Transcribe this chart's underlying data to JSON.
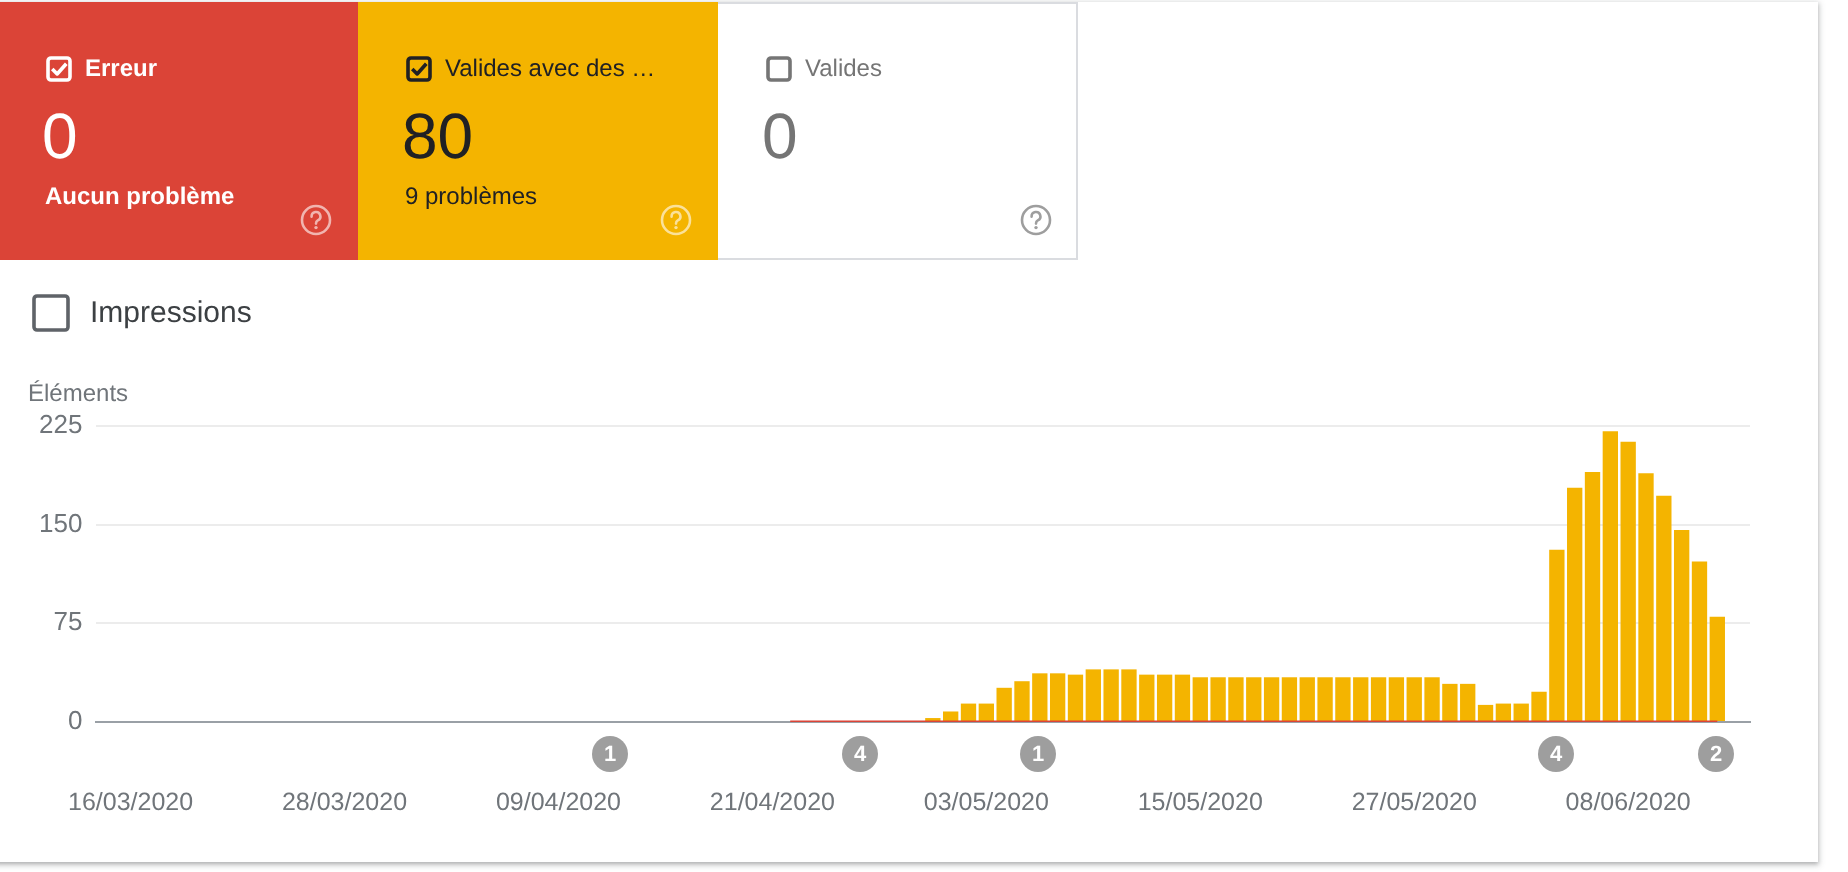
{
  "chart_data": [
    {
      "type": "other",
      "categories": [
        "Erreur",
        "Valides avec des …",
        "Valides"
      ],
      "values": [
        0,
        80,
        0
      ],
      "colors": [
        "#db4437",
        "#f4b400",
        null
      ],
      "data_labels": true,
      "annotations": [
        "Aucun problème",
        "9 problèmes"
      ]
    },
    {
      "type": "bar",
      "ylabel": "Éléments",
      "series": [
        {
          "type": "line",
          "color": "#db4437",
          "x": [
            "2020-04-22",
            "2020-06-13"
          ],
          "values": [
            0,
            0
          ]
        },
        {
          "color": "#f4b400",
          "x": [
            "2020-04-30",
            "2020-05-01",
            "2020-05-02",
            "2020-05-03",
            "2020-05-04",
            "2020-05-05",
            "2020-05-06",
            "2020-05-07",
            "2020-05-08",
            "2020-05-09",
            "2020-05-10",
            "2020-05-11",
            "2020-05-12",
            "2020-05-13",
            "2020-05-14",
            "2020-05-15",
            "2020-05-16",
            "2020-05-17",
            "2020-05-18",
            "2020-05-19",
            "2020-05-20",
            "2020-05-21",
            "2020-05-22",
            "2020-05-23",
            "2020-05-24",
            "2020-05-25",
            "2020-05-26",
            "2020-05-27",
            "2020-05-28",
            "2020-05-29",
            "2020-05-30",
            "2020-05-31",
            "2020-06-01",
            "2020-06-02",
            "2020-06-03",
            "2020-06-04",
            "2020-06-05",
            "2020-06-06",
            "2020-06-07",
            "2020-06-08",
            "2020-06-09",
            "2020-06-10",
            "2020-06-11",
            "2020-06-12",
            "2020-06-13"
          ],
          "values": [
            3,
            8,
            14,
            14,
            26,
            31,
            37,
            37,
            36,
            40,
            40,
            40,
            36,
            36,
            36,
            34,
            34,
            34,
            34,
            34,
            34,
            34,
            34,
            34,
            34,
            34,
            34,
            34,
            34,
            29,
            29,
            13,
            14,
            14,
            23,
            131,
            178,
            190,
            221,
            213,
            189,
            172,
            146,
            122,
            80
          ]
        }
      ],
      "xlim": [
        "2020-03-14T02:00",
        "2020-06-14T20:00"
      ],
      "xticks": [
        {
          "value": "2020-03-16",
          "label": "16/03/2020"
        },
        {
          "value": "2020-03-28",
          "label": "28/03/2020"
        },
        {
          "value": "2020-04-09",
          "label": "09/04/2020"
        },
        {
          "value": "2020-04-21",
          "label": "21/04/2020"
        },
        {
          "value": "2020-05-03",
          "label": "03/05/2020"
        },
        {
          "value": "2020-05-15",
          "label": "15/05/2020"
        },
        {
          "value": "2020-05-27",
          "label": "27/05/2020"
        },
        {
          "value": "2020-06-08",
          "label": "08/06/2020"
        }
      ],
      "ylim": [
        0,
        225
      ],
      "yticks": [
        0,
        75,
        150,
        225
      ],
      "grid": "y",
      "marker": "none",
      "annotations": [
        "Impressions",
        "1",
        "4",
        "1",
        "4",
        "2"
      ]
    }
  ]
}
